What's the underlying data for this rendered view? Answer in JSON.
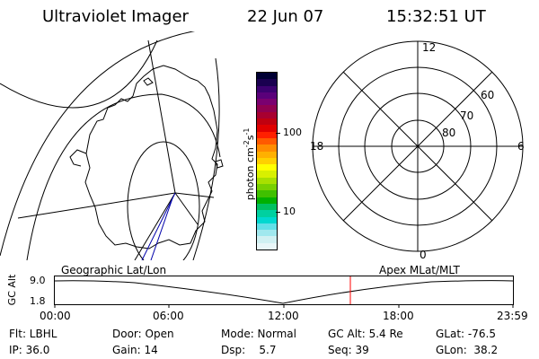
{
  "header": {
    "instrument": "Ultraviolet Imager",
    "date": "22 Jun 07",
    "time": "15:32:51 UT"
  },
  "colorbar": {
    "unit_label": "photon cm",
    "unit_exp1": "-2",
    "unit_mid": "s",
    "unit_exp2": "-1",
    "tick_100": "100",
    "tick_10": "10",
    "colors": [
      "#000033",
      "#1a0050",
      "#3c0070",
      "#5a007a",
      "#7a0070",
      "#900050",
      "#a80030",
      "#c00010",
      "#e00000",
      "#ff2000",
      "#ff5a00",
      "#ff8c00",
      "#ffb000",
      "#ffd000",
      "#ffff00",
      "#d8f000",
      "#a8e000",
      "#78d000",
      "#40c000",
      "#00b000",
      "#00c060",
      "#00d0a0",
      "#00d8d0",
      "#60e0e8",
      "#a0e8ee",
      "#d0f0f2",
      "#e8f6f8"
    ]
  },
  "polar_plot": {
    "mlt_labels": [
      "12",
      "18",
      "6",
      "0"
    ],
    "lat_labels": [
      "60",
      "70",
      "80"
    ]
  },
  "timeline": {
    "left_title": "Geographic Lat/Lon",
    "right_title": "Apex MLat/MLT",
    "ylabel": "GC Alt",
    "y_top": "9.0",
    "y_bottom": "1.8",
    "x_ticks": [
      "00:00",
      "06:00",
      "12:00",
      "18:00",
      "23:59"
    ],
    "marker_color": "#ff0000"
  },
  "footer": {
    "row1": [
      {
        "label": "Flt: LBHL"
      },
      {
        "label": "Door: Open"
      },
      {
        "label": "Mode: Normal"
      },
      {
        "label": "GC Alt: 5.4 Re"
      },
      {
        "label": "GLat: -76.5"
      }
    ],
    "row2": [
      {
        "label": "IP: 36.0"
      },
      {
        "label": "Gain: 14"
      },
      {
        "label": "Dsp:    5.7"
      },
      {
        "label": "Seq: 39"
      },
      {
        "label": "GLon:  38.2"
      }
    ]
  }
}
